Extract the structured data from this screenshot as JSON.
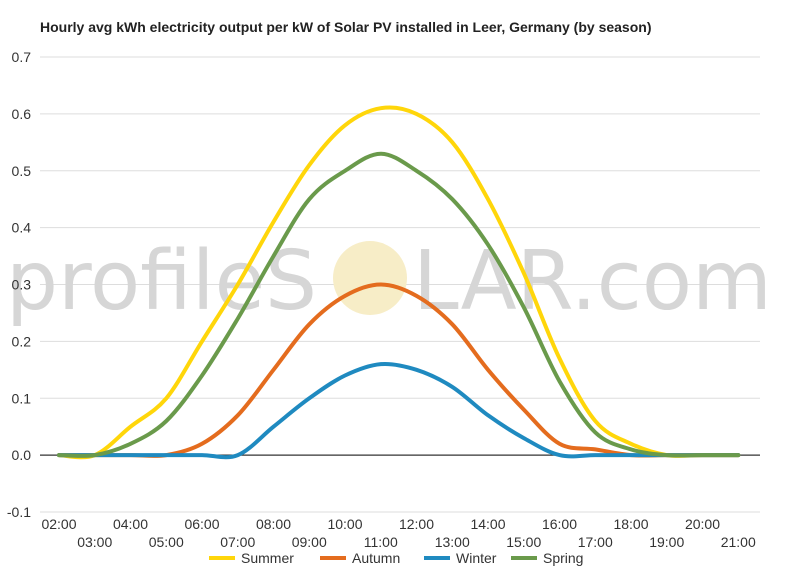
{
  "watermark": {
    "text_left": "profileS",
    "text_right": "LAR.com"
  },
  "chart_data": {
    "type": "line",
    "title": "Hourly avg kWh electricity output per kW of Solar PV installed in Leer, Germany (by season)",
    "xlabel": "",
    "ylabel": "",
    "ylim": [
      -0.1,
      0.7
    ],
    "y_ticks": [
      "-0.1",
      "0.0",
      "0.1",
      "0.2",
      "0.3",
      "0.4",
      "0.5",
      "0.6",
      "0.7"
    ],
    "x_ticks": [
      "02:00",
      "03:00",
      "04:00",
      "05:00",
      "06:00",
      "07:00",
      "08:00",
      "09:00",
      "10:00",
      "11:00",
      "12:00",
      "13:00",
      "14:00",
      "15:00",
      "16:00",
      "17:00",
      "18:00",
      "19:00",
      "20:00",
      "21:00"
    ],
    "x": [
      2,
      3,
      4,
      5,
      6,
      7,
      8,
      9,
      10,
      11,
      12,
      13,
      14,
      15,
      16,
      17,
      18,
      19,
      20,
      21
    ],
    "grid": true,
    "legend_position": "bottom",
    "series": [
      {
        "name": "Summer",
        "color": "#ffd60a",
        "values": [
          0.0,
          0.0,
          0.05,
          0.1,
          0.2,
          0.3,
          0.41,
          0.51,
          0.58,
          0.61,
          0.6,
          0.55,
          0.45,
          0.32,
          0.17,
          0.06,
          0.02,
          0.0,
          0.0,
          0.0
        ]
      },
      {
        "name": "Autumn",
        "color": "#e46c1e",
        "values": [
          0.0,
          0.0,
          0.0,
          0.0,
          0.02,
          0.07,
          0.15,
          0.23,
          0.28,
          0.3,
          0.28,
          0.23,
          0.15,
          0.08,
          0.02,
          0.01,
          0.0,
          0.0,
          0.0,
          0.0
        ]
      },
      {
        "name": "Winter",
        "color": "#1f8ac0",
        "values": [
          0.0,
          0.0,
          0.0,
          0.0,
          0.0,
          0.0,
          0.05,
          0.1,
          0.14,
          0.16,
          0.15,
          0.12,
          0.07,
          0.03,
          0.0,
          0.0,
          0.0,
          0.0,
          0.0,
          0.0
        ]
      },
      {
        "name": "Spring",
        "color": "#6a9a4b",
        "values": [
          0.0,
          0.0,
          0.02,
          0.06,
          0.14,
          0.24,
          0.35,
          0.45,
          0.5,
          0.53,
          0.5,
          0.45,
          0.37,
          0.26,
          0.13,
          0.04,
          0.01,
          0.0,
          0.0,
          0.0
        ]
      }
    ]
  }
}
